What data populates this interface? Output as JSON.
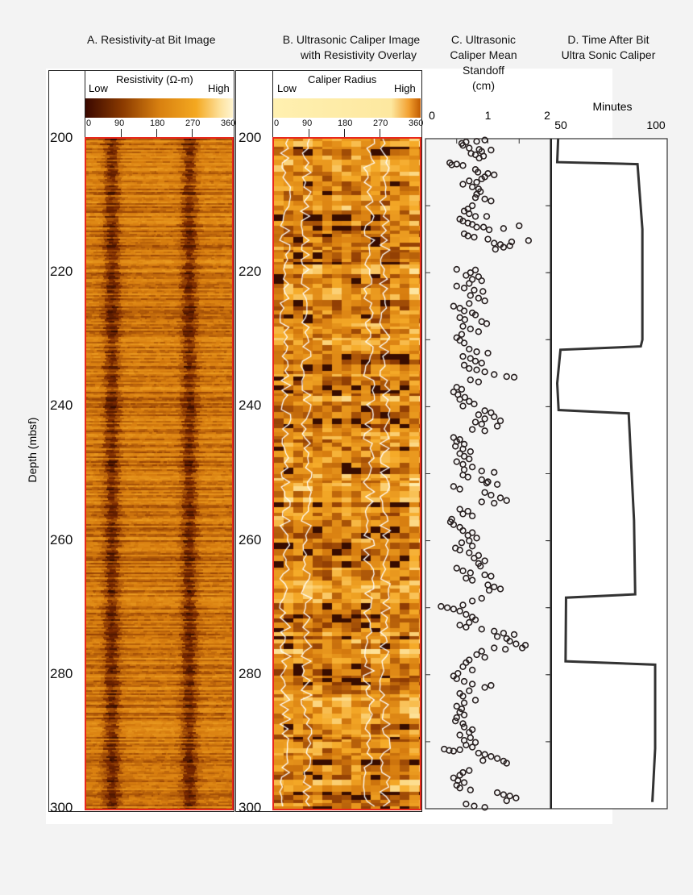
{
  "titles": {
    "a": "A. Resistivity-at Bit Image",
    "b1": "B. Ultrasonic Caliper Image",
    "b2": "with Resistivity Overlay",
    "c1": "C. Ultrasonic",
    "c2": "Caliper Mean",
    "c3": "Standoff",
    "c4": "(cm)",
    "d1": "D. Time After Bit",
    "d2": "Ultra Sonic Caliper"
  },
  "depth_axis": {
    "label": "Depth (mbsf)",
    "ticks": [
      "200",
      "220",
      "240",
      "260",
      "280",
      "300"
    ]
  },
  "panel_a": {
    "scale_label": "Resistivity  (Ω-m)",
    "low": "Low",
    "high": "High",
    "azimuth_ticks": [
      "0",
      "90",
      "180",
      "270",
      "360"
    ]
  },
  "panel_b": {
    "scale_label": "Caliper Radius",
    "low": "Low",
    "high": "High",
    "azimuth_ticks": [
      "0",
      "90",
      "180",
      "270",
      "360"
    ]
  },
  "colors": {
    "border": "#e8281c",
    "trace": "#333333",
    "overlay": "#ffffff"
  },
  "chart_data": [
    {
      "type": "scatter",
      "panel": "C",
      "xlabel": "Ultrasonic Caliper Mean Standoff (cm)",
      "xlim": [
        0,
        2
      ],
      "xticks": [
        "0",
        "1",
        "2"
      ],
      "ylim": [
        200,
        300
      ],
      "y_inverted": true,
      "points": [
        [
          200.2,
          0.95
        ],
        [
          200.4,
          0.82
        ],
        [
          200.5,
          0.65
        ],
        [
          200.7,
          0.58
        ],
        [
          201,
          0.6
        ],
        [
          201.4,
          0.7
        ],
        [
          201.6,
          0.86
        ],
        [
          201.7,
          1.05
        ],
        [
          201.9,
          0.9
        ],
        [
          202.2,
          0.73
        ],
        [
          202.4,
          0.8
        ],
        [
          202.6,
          0.93
        ],
        [
          202.9,
          0.86
        ],
        [
          203.6,
          0.39
        ],
        [
          203.9,
          0.42
        ],
        [
          204,
          0.6
        ],
        [
          203.8,
          0.5
        ],
        [
          204.6,
          0.8
        ],
        [
          205,
          0.84
        ],
        [
          205.2,
          1.0
        ],
        [
          205.4,
          1.1
        ],
        [
          205.7,
          0.95
        ],
        [
          206,
          0.9
        ],
        [
          206.3,
          0.7
        ],
        [
          206.5,
          0.82
        ],
        [
          206.8,
          0.6
        ],
        [
          207.2,
          0.75
        ],
        [
          207.5,
          0.85
        ],
        [
          207.9,
          0.88
        ],
        [
          208.3,
          0.82
        ],
        [
          208.8,
          0.8
        ],
        [
          209,
          0.95
        ],
        [
          209.3,
          1.05
        ],
        [
          210,
          0.75
        ],
        [
          210.5,
          0.68
        ],
        [
          210.8,
          0.62
        ],
        [
          211.2,
          0.7
        ],
        [
          211.6,
          0.8
        ],
        [
          211.6,
          0.98
        ],
        [
          212,
          0.55
        ],
        [
          212.3,
          0.6
        ],
        [
          212.6,
          0.68
        ],
        [
          212.8,
          0.75
        ],
        [
          213.2,
          0.82
        ],
        [
          213.2,
          0.93
        ],
        [
          213.6,
          1.02
        ],
        [
          213.4,
          1.25
        ],
        [
          213,
          1.5
        ],
        [
          214.2,
          0.62
        ],
        [
          214.5,
          0.68
        ],
        [
          214.7,
          0.78
        ],
        [
          215,
          1.0
        ],
        [
          215.6,
          1.1
        ],
        [
          215.8,
          1.2
        ],
        [
          216.2,
          1.25
        ],
        [
          216,
          1.35
        ],
        [
          215.4,
          1.38
        ],
        [
          215.2,
          1.65
        ],
        [
          216.5,
          1.12
        ],
        [
          219.5,
          0.5
        ],
        [
          219.6,
          0.8
        ],
        [
          220,
          0.72
        ],
        [
          220.4,
          0.65
        ],
        [
          220.6,
          0.85
        ],
        [
          221,
          0.75
        ],
        [
          221.2,
          0.9
        ],
        [
          221.6,
          0.7
        ],
        [
          222,
          0.5
        ],
        [
          222.3,
          0.62
        ],
        [
          222.6,
          0.78
        ],
        [
          222.8,
          0.92
        ],
        [
          223.4,
          0.72
        ],
        [
          223.8,
          0.85
        ],
        [
          224.2,
          0.95
        ],
        [
          224.6,
          0.7
        ],
        [
          225,
          0.45
        ],
        [
          225.3,
          0.55
        ],
        [
          225.7,
          0.62
        ],
        [
          226,
          0.75
        ],
        [
          226.3,
          0.8
        ],
        [
          226.7,
          0.55
        ],
        [
          227,
          0.63
        ],
        [
          227.3,
          0.9
        ],
        [
          227.6,
          0.98
        ],
        [
          228,
          0.6
        ],
        [
          228.4,
          0.72
        ],
        [
          228.8,
          0.85
        ],
        [
          229.2,
          0.58
        ],
        [
          229.7,
          0.5
        ],
        [
          230.1,
          0.55
        ],
        [
          230.5,
          0.62
        ],
        [
          231.4,
          0.7
        ],
        [
          231.8,
          0.82
        ],
        [
          232,
          1.0
        ],
        [
          232.5,
          0.6
        ],
        [
          232.8,
          0.72
        ],
        [
          233.2,
          0.8
        ],
        [
          233.5,
          0.9
        ],
        [
          233.8,
          0.62
        ],
        [
          234.3,
          0.7
        ],
        [
          234.5,
          0.82
        ],
        [
          234.8,
          0.95
        ],
        [
          235.2,
          1.1
        ],
        [
          235.5,
          1.3
        ],
        [
          235.6,
          1.42
        ],
        [
          236,
          0.72
        ],
        [
          236.3,
          0.85
        ],
        [
          237.1,
          0.5
        ],
        [
          237.4,
          0.58
        ],
        [
          237.8,
          0.45
        ],
        [
          238.2,
          0.52
        ],
        [
          238.6,
          0.63
        ],
        [
          238.9,
          0.55
        ],
        [
          239.2,
          0.7
        ],
        [
          239.6,
          0.78
        ],
        [
          239.9,
          0.6
        ],
        [
          240.6,
          0.95
        ],
        [
          240.9,
          1.05
        ],
        [
          241.2,
          0.85
        ],
        [
          241.5,
          1.1
        ],
        [
          241.8,
          0.95
        ],
        [
          242.1,
          1.2
        ],
        [
          242.3,
          0.8
        ],
        [
          242.6,
          0.9
        ],
        [
          242.9,
          1.15
        ],
        [
          243.4,
          0.75
        ],
        [
          243.6,
          0.95
        ],
        [
          244.6,
          0.45
        ],
        [
          244.9,
          0.55
        ],
        [
          245.2,
          0.5
        ],
        [
          245.6,
          0.62
        ],
        [
          245.9,
          0.48
        ],
        [
          246.3,
          0.6
        ],
        [
          246.7,
          0.72
        ],
        [
          247,
          0.55
        ],
        [
          247.4,
          0.62
        ],
        [
          247.8,
          0.7
        ],
        [
          248.2,
          0.5
        ],
        [
          248.6,
          0.6
        ],
        [
          249,
          0.75
        ],
        [
          249.4,
          0.62
        ],
        [
          249.6,
          0.9
        ],
        [
          249.8,
          1.1
        ],
        [
          250.2,
          0.6
        ],
        [
          250.5,
          0.68
        ],
        [
          250.9,
          0.9
        ],
        [
          251.2,
          1.0
        ],
        [
          251.4,
          0.98
        ],
        [
          251.6,
          1.15
        ],
        [
          251.9,
          0.45
        ],
        [
          252.3,
          0.55
        ],
        [
          252.8,
          0.95
        ],
        [
          253.2,
          1.05
        ],
        [
          253.6,
          1.2
        ],
        [
          254.2,
          0.9
        ],
        [
          254.4,
          1.1
        ],
        [
          254,
          1.3
        ],
        [
          255.3,
          0.55
        ],
        [
          255.6,
          0.68
        ],
        [
          256,
          0.6
        ],
        [
          256.3,
          0.75
        ],
        [
          256.8,
          0.42
        ],
        [
          257.2,
          0.4
        ],
        [
          257.6,
          0.45
        ],
        [
          258,
          0.55
        ],
        [
          258.5,
          0.6
        ],
        [
          258.8,
          0.75
        ],
        [
          259.2,
          0.68
        ],
        [
          259.6,
          0.82
        ],
        [
          260,
          0.7
        ],
        [
          260.3,
          0.58
        ],
        [
          260.8,
          0.75
        ],
        [
          261.1,
          0.48
        ],
        [
          261.4,
          0.55
        ],
        [
          261.8,
          0.7
        ],
        [
          262.2,
          0.85
        ],
        [
          262.6,
          0.78
        ],
        [
          263,
          0.95
        ],
        [
          263.4,
          0.85
        ],
        [
          263.8,
          0.88
        ],
        [
          264.1,
          0.5
        ],
        [
          264.5,
          0.6
        ],
        [
          264.8,
          0.72
        ],
        [
          265.1,
          0.95
        ],
        [
          265.3,
          1.05
        ],
        [
          265.6,
          0.65
        ],
        [
          265.9,
          0.75
        ],
        [
          266.6,
          1.0
        ],
        [
          266.9,
          1.1
        ],
        [
          267.2,
          1.2
        ],
        [
          267.4,
          1.02
        ],
        [
          268.6,
          0.9
        ],
        [
          269,
          0.75
        ],
        [
          269.6,
          0.6
        ],
        [
          269.8,
          0.25
        ],
        [
          270,
          0.35
        ],
        [
          270.2,
          0.45
        ],
        [
          270.5,
          0.55
        ],
        [
          271,
          0.65
        ],
        [
          271.4,
          0.75
        ],
        [
          271.8,
          0.8
        ],
        [
          272.2,
          0.7
        ],
        [
          272.6,
          0.55
        ],
        [
          272.9,
          0.65
        ],
        [
          273.2,
          0.9
        ],
        [
          273.5,
          1.1
        ],
        [
          273.8,
          1.25
        ],
        [
          274,
          1.42
        ],
        [
          274.3,
          1.15
        ],
        [
          274.6,
          1.3
        ],
        [
          275,
          1.35
        ],
        [
          275.4,
          1.45
        ],
        [
          275.6,
          1.6
        ],
        [
          276,
          1.1
        ],
        [
          276.2,
          1.28
        ],
        [
          276,
          1.55
        ],
        [
          276.5,
          0.9
        ],
        [
          277,
          0.82
        ],
        [
          277.4,
          0.95
        ],
        [
          277.8,
          0.7
        ],
        [
          278.2,
          0.65
        ],
        [
          278.8,
          0.6
        ],
        [
          279.3,
          0.75
        ],
        [
          279.8,
          0.52
        ],
        [
          280.2,
          0.45
        ],
        [
          280.6,
          0.5
        ],
        [
          281,
          0.62
        ],
        [
          281.4,
          0.75
        ],
        [
          281.6,
          1.05
        ],
        [
          281.9,
          0.95
        ],
        [
          282.4,
          0.7
        ],
        [
          282.8,
          0.55
        ],
        [
          283.2,
          0.6
        ],
        [
          283.8,
          0.8
        ],
        [
          284.2,
          0.62
        ],
        [
          284.7,
          0.5
        ],
        [
          285.1,
          0.58
        ],
        [
          285.6,
          0.55
        ],
        [
          286,
          0.62
        ],
        [
          286.4,
          0.5
        ],
        [
          286.9,
          0.48
        ],
        [
          287.3,
          0.6
        ],
        [
          287.8,
          0.62
        ],
        [
          288.2,
          0.75
        ],
        [
          288.6,
          0.7
        ],
        [
          289,
          0.55
        ],
        [
          289.4,
          0.72
        ],
        [
          289.8,
          0.62
        ],
        [
          290.1,
          0.8
        ],
        [
          290.5,
          0.65
        ],
        [
          290.8,
          0.75
        ],
        [
          291.1,
          0.3
        ],
        [
          291.3,
          0.38
        ],
        [
          291.4,
          0.45
        ],
        [
          291.2,
          0.55
        ],
        [
          291.7,
          0.85
        ],
        [
          291.9,
          0.95
        ],
        [
          292.2,
          1.05
        ],
        [
          292.5,
          1.15
        ],
        [
          292.8,
          0.92
        ],
        [
          292.9,
          1.25
        ],
        [
          293.2,
          1.3
        ],
        [
          294.3,
          0.7
        ],
        [
          294.6,
          0.6
        ],
        [
          295,
          0.55
        ],
        [
          295.4,
          0.45
        ],
        [
          295.8,
          0.52
        ],
        [
          296.1,
          0.62
        ],
        [
          296.5,
          0.5
        ],
        [
          296.9,
          0.55
        ],
        [
          297.2,
          0.72
        ],
        [
          297.6,
          1.15
        ],
        [
          297.9,
          1.25
        ],
        [
          298.1,
          1.35
        ],
        [
          298.4,
          1.45
        ],
        [
          298.8,
          1.3
        ],
        [
          299.3,
          0.65
        ],
        [
          299.6,
          0.78
        ],
        [
          299.8,
          0.95
        ]
      ]
    },
    {
      "type": "line",
      "panel": "D",
      "xlabel": "Minutes",
      "xlim": [
        50,
        100
      ],
      "xticks": [
        "50",
        "100"
      ],
      "ylim": [
        200,
        300
      ],
      "y_inverted": true,
      "points": [
        [
          200,
          53
        ],
        [
          203.5,
          52.6
        ],
        [
          203.8,
          87.2
        ],
        [
          213.5,
          89.3
        ],
        [
          230,
          89.3
        ],
        [
          231,
          88.6
        ],
        [
          231.5,
          54
        ],
        [
          236.5,
          52.6
        ],
        [
          240.5,
          53.2
        ],
        [
          241,
          83.4
        ],
        [
          257,
          85.7
        ],
        [
          268,
          86.2
        ],
        [
          268.5,
          56.4
        ],
        [
          278,
          56.2
        ],
        [
          278.5,
          94.8
        ],
        [
          291,
          94.8
        ],
        [
          299,
          93.6
        ]
      ]
    }
  ]
}
